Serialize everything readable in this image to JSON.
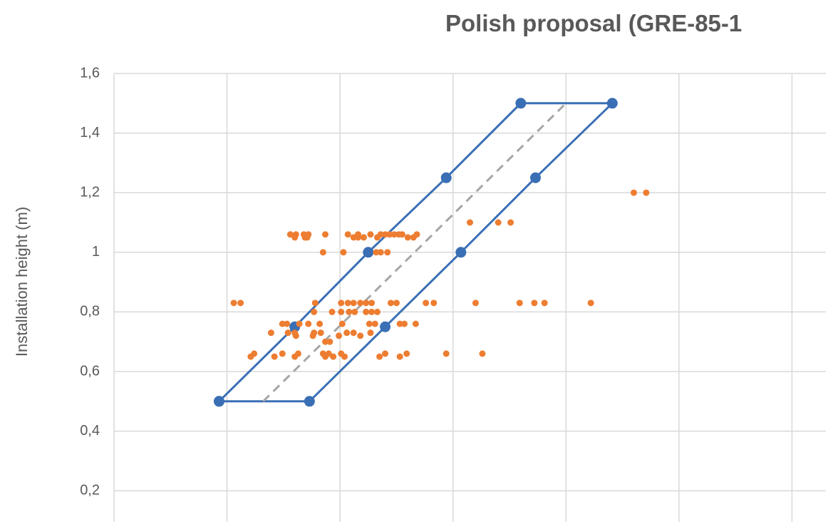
{
  "chart_data": {
    "type": "scatter",
    "title": "Polish proposal (GRE-85-1",
    "y_label": "Installation height (m)",
    "xlim": [
      0,
      6.3
    ],
    "xticks": [
      0,
      1,
      2,
      3,
      4,
      5,
      6
    ],
    "ylim": [
      0.1,
      1.6
    ],
    "yticks": [
      {
        "value": 0.2,
        "label": "0,2"
      },
      {
        "value": 0.4,
        "label": "0,4"
      },
      {
        "value": 0.6,
        "label": "0,6"
      },
      {
        "value": 0.8,
        "label": "0,8"
      },
      {
        "value": 1,
        "label": "1"
      },
      {
        "value": 1.2,
        "label": "1,2"
      },
      {
        "value": 1.4,
        "label": "1,4"
      },
      {
        "value": 1.6,
        "label": "1,6"
      }
    ],
    "grid": true,
    "series": [
      {
        "color": "#3a6fb5",
        "line": true,
        "markers": true,
        "dashed": false,
        "x": [
          0.93,
          1.73,
          2.4,
          3.07,
          3.73,
          4.41,
          3.6,
          2.94,
          2.25,
          1.6,
          0.93
        ],
        "values": [
          0.5,
          0.5,
          0.75,
          1,
          1.25,
          1.5,
          1.5,
          1.25,
          1,
          0.75,
          0.5
        ]
      },
      {
        "color": "#a6a6a6",
        "line": true,
        "markers": false,
        "dashed": true,
        "x": [
          1.32,
          4.0
        ],
        "values": [
          0.5,
          1.5
        ]
      },
      {
        "color": "#ed7d31",
        "line": false,
        "markers": true,
        "dashed": false,
        "x": [
          4.6,
          4.71,
          3.15,
          3.4,
          3.51,
          1.56,
          1.61,
          1.68,
          1.72,
          1.87,
          2.07,
          2.16,
          2.27,
          2.36,
          2.4,
          2.44,
          2.48,
          2.52,
          2.55,
          2.68,
          1.6,
          1.69,
          1.71,
          2.12,
          2.16,
          2.21,
          2.33,
          2.6,
          2.65,
          1.85,
          2.03,
          2.32,
          2.36,
          2.42,
          1.06,
          1.12,
          1.78,
          2.01,
          2.07,
          2.12,
          2.18,
          2.23,
          2.28,
          2.45,
          2.5,
          2.76,
          2.83,
          3.2,
          3.59,
          3.72,
          3.81,
          4.22,
          1.77,
          1.93,
          2.01,
          2.08,
          2.13,
          2.23,
          2.28,
          2.33,
          1.49,
          1.53,
          1.64,
          1.72,
          1.82,
          2.02,
          2.26,
          2.31,
          2.53,
          2.57,
          2.67,
          1.39,
          1.54,
          1.6,
          1.77,
          1.83,
          2.06,
          2.12,
          2.27,
          1.61,
          1.76,
          1.99,
          2.18,
          1.87,
          1.91,
          1.24,
          1.49,
          1.63,
          1.85,
          1.9,
          2.01,
          2.4,
          2.59,
          2.94,
          3.26,
          1.21,
          1.42,
          1.6,
          1.87,
          1.94,
          2.04,
          2.35,
          2.53
        ],
        "values": [
          1.2,
          1.2,
          1.1,
          1.1,
          1.1,
          1.06,
          1.06,
          1.06,
          1.06,
          1.06,
          1.06,
          1.06,
          1.06,
          1.06,
          1.06,
          1.06,
          1.06,
          1.06,
          1.06,
          1.06,
          1.05,
          1.05,
          1.05,
          1.05,
          1.05,
          1.05,
          1.05,
          1.05,
          1.05,
          1,
          1,
          1,
          1,
          1,
          0.83,
          0.83,
          0.83,
          0.83,
          0.83,
          0.83,
          0.83,
          0.83,
          0.83,
          0.83,
          0.83,
          0.83,
          0.83,
          0.83,
          0.83,
          0.83,
          0.83,
          0.83,
          0.8,
          0.8,
          0.8,
          0.8,
          0.8,
          0.8,
          0.8,
          0.8,
          0.76,
          0.76,
          0.76,
          0.76,
          0.76,
          0.76,
          0.76,
          0.76,
          0.76,
          0.76,
          0.76,
          0.73,
          0.73,
          0.73,
          0.73,
          0.73,
          0.73,
          0.73,
          0.73,
          0.72,
          0.72,
          0.72,
          0.72,
          0.7,
          0.7,
          0.66,
          0.66,
          0.66,
          0.66,
          0.66,
          0.66,
          0.66,
          0.66,
          0.66,
          0.66,
          0.65,
          0.65,
          0.65,
          0.65,
          0.65,
          0.65,
          0.65,
          0.65
        ]
      }
    ]
  }
}
